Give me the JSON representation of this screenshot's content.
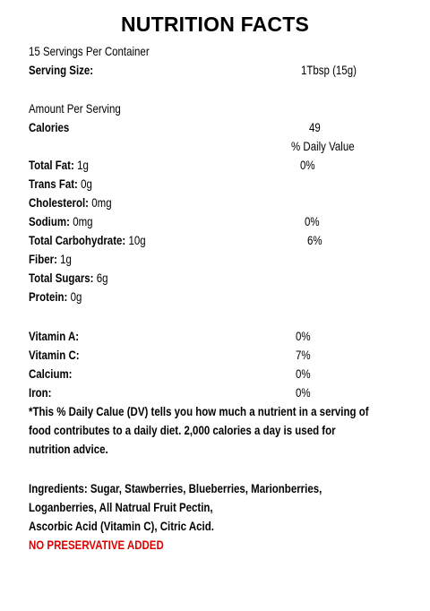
{
  "title": "NUTRITION FACTS",
  "servings_per_container": "15 Servings Per Container",
  "serving_size": {
    "label": "Serving Size:",
    "value": "1Tbsp (15g)"
  },
  "amount_per_serving": "Amount Per Serving",
  "calories": {
    "label": "Calories",
    "value": "49"
  },
  "daily_value_header": "% Daily Value",
  "nutrients": [
    {
      "label": "Total Fat:",
      "amount": "1g",
      "dv": "0%"
    },
    {
      "label": "Trans Fat:",
      "amount": "0g"
    },
    {
      "label": "Cholesterol:",
      "amount": "0mg"
    },
    {
      "label": "Sodium:",
      "amount": "0mg",
      "dv": "0%"
    },
    {
      "label": "Total Carbohydrate:",
      "amount": "10g",
      "dv": "6%"
    },
    {
      "label": "Fiber:",
      "amount": "1g"
    },
    {
      "label": "Total Sugars:",
      "amount": "6g"
    },
    {
      "label": "Protein:",
      "amount": "0g"
    }
  ],
  "vitamins": [
    {
      "label": "Vitamin A:",
      "dv": "0%"
    },
    {
      "label": "Vitamin C:",
      "dv": "7%"
    },
    {
      "label": "Calcium:",
      "dv": "0%"
    },
    {
      "label": "Iron:",
      "dv": "0%"
    }
  ],
  "footnote": [
    "*This % Daily Calue (DV) tells you how much a nutrient in a serving of",
    "food contributes to a daily diet. 2,000 calories a day is used for",
    "nutrition advice."
  ],
  "ingredients": [
    "Ingredients: Sugar, Stawberries, Blueberries, Marionberries,",
    "Loganberries,  All Natrual Fruit Pectin,",
    "Ascorbic Acid (Vitamin C), Citric Acid."
  ],
  "notice": "NO PRESERVATIVE ADDED"
}
